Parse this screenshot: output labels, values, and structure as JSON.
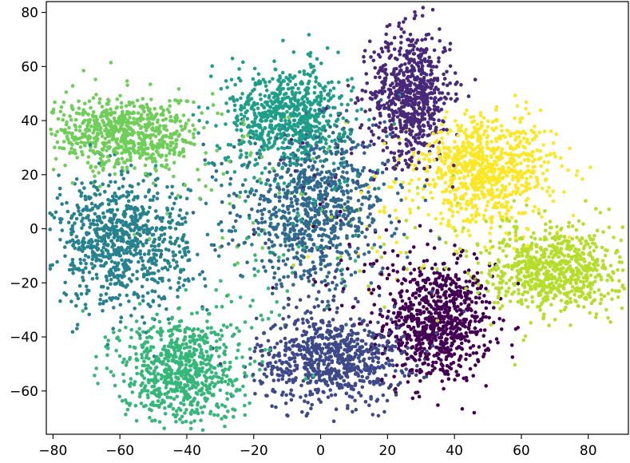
{
  "chart_data": {
    "type": "scatter",
    "title": "",
    "xlabel": "",
    "ylabel": "",
    "xlim": [
      -82,
      92
    ],
    "ylim": [
      -76,
      84
    ],
    "x_ticks": [
      -80,
      -60,
      -40,
      -20,
      0,
      20,
      40,
      60,
      80
    ],
    "x_tick_labels": [
      "−80",
      "−60",
      "−40",
      "−20",
      "0",
      "20",
      "40",
      "60",
      "80"
    ],
    "y_ticks": [
      -60,
      -40,
      -20,
      0,
      20,
      40,
      60,
      80
    ],
    "y_tick_labels": [
      "−60",
      "−40",
      "−20",
      "0",
      "20",
      "40",
      "60",
      "80"
    ],
    "grid": false,
    "legend": "none",
    "colormap": "viridis",
    "series": [
      {
        "color": "#440154",
        "center": [
          35,
          -35
        ],
        "spread": [
          8,
          11
        ],
        "count": 800
      },
      {
        "color": "#482878",
        "center": [
          27,
          50
        ],
        "spread": [
          6,
          12
        ],
        "count": 700
      },
      {
        "color": "#3e4989",
        "center": [
          3,
          -48
        ],
        "spread": [
          11,
          8
        ],
        "count": 750
      },
      {
        "color": "#31688e",
        "center": [
          -2,
          8
        ],
        "spread": [
          11,
          14
        ],
        "count": 800
      },
      {
        "color": "#26828e",
        "center": [
          -60,
          -5
        ],
        "spread": [
          10,
          12
        ],
        "count": 850
      },
      {
        "color": "#1f9e89",
        "center": [
          -10,
          42
        ],
        "spread": [
          9,
          9
        ],
        "count": 700
      },
      {
        "color": "#35b779",
        "center": [
          -42,
          -52
        ],
        "spread": [
          9,
          10
        ],
        "count": 750
      },
      {
        "color": "#6ece58",
        "center": [
          -58,
          35
        ],
        "spread": [
          11,
          7
        ],
        "count": 700
      },
      {
        "color": "#b5de2b",
        "center": [
          70,
          -15
        ],
        "spread": [
          10,
          8
        ],
        "count": 750
      },
      {
        "color": "#fde725",
        "center": [
          50,
          22
        ],
        "spread": [
          10,
          10
        ],
        "count": 800
      }
    ]
  }
}
